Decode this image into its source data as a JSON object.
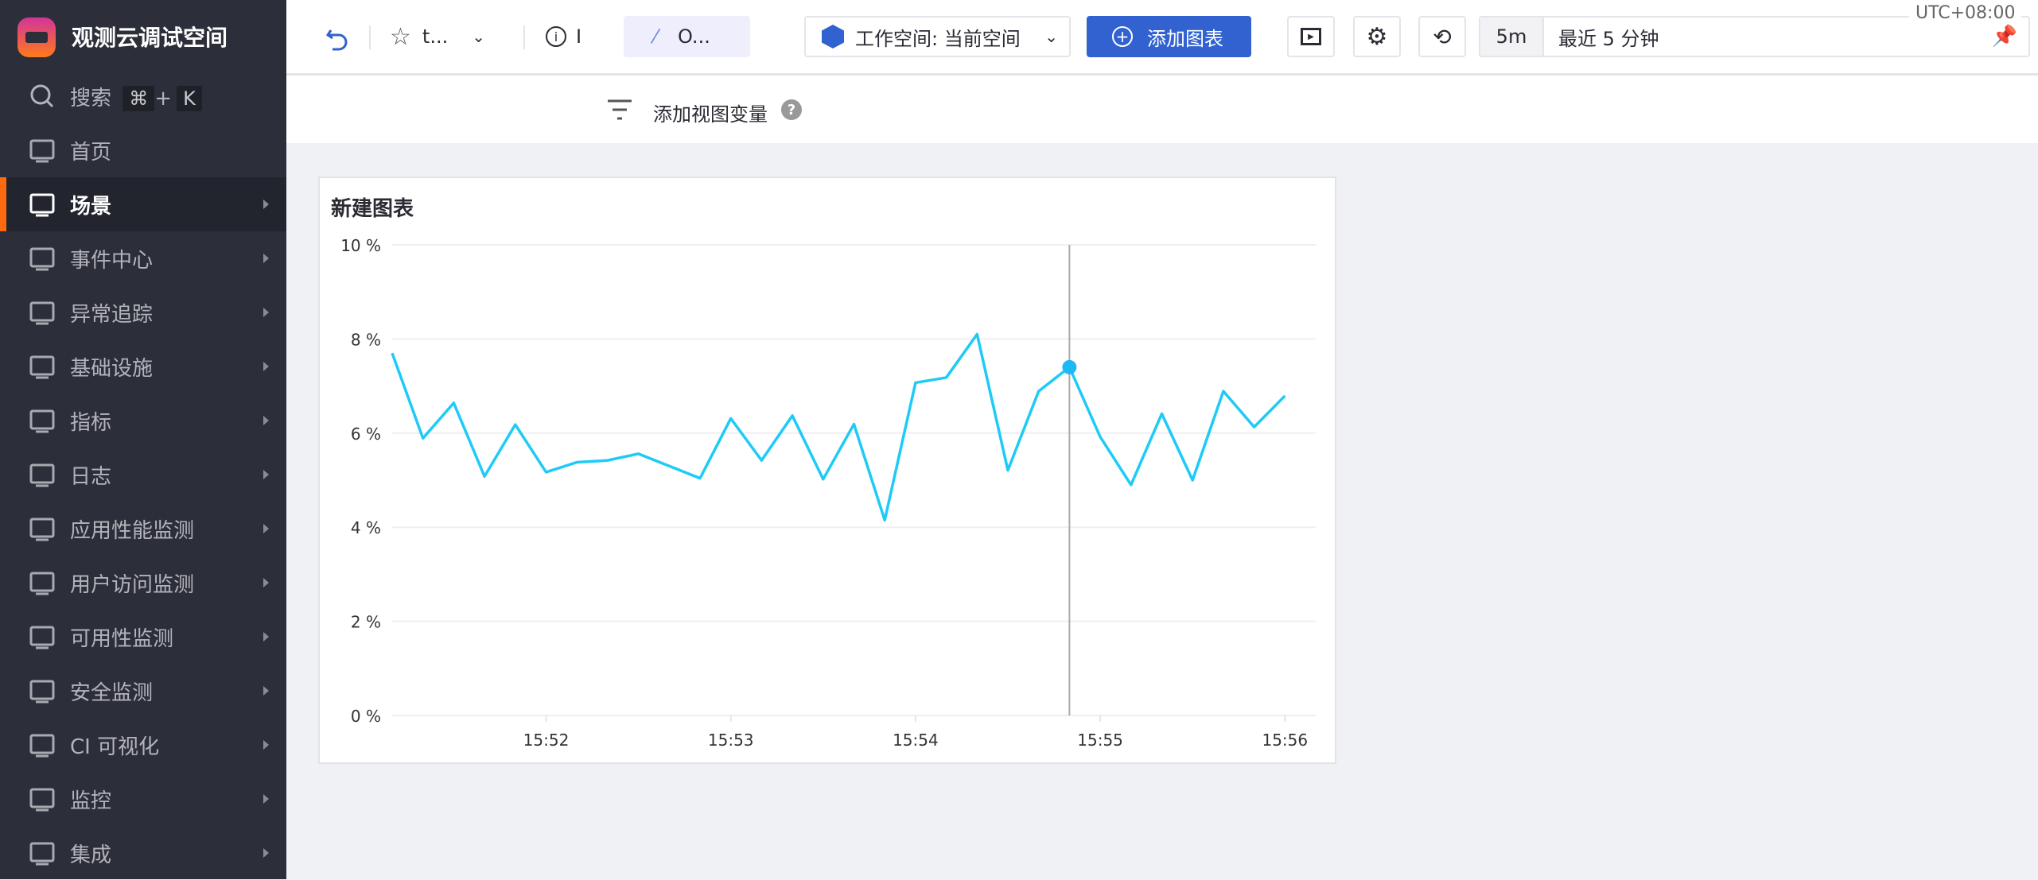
{
  "sidebar": {
    "brand": "观测云调试空间",
    "search": {
      "label": "搜索",
      "shortcut_key1": "⌘",
      "shortcut_plus": "+",
      "shortcut_key2": "K"
    },
    "items": [
      {
        "label": "首页",
        "icon": "home-icon"
      },
      {
        "label": "场景",
        "icon": "monitor-icon",
        "active": true
      },
      {
        "label": "事件中心",
        "icon": "calendar-icon"
      },
      {
        "label": "异常追踪",
        "icon": "scan-alert-icon"
      },
      {
        "label": "基础设施",
        "icon": "hexagons-icon"
      },
      {
        "label": "指标",
        "icon": "metrics-icon"
      },
      {
        "label": "日志",
        "icon": "log-search-icon"
      },
      {
        "label": "应用性能监测",
        "icon": "filter-lines-icon"
      },
      {
        "label": "用户访问监测",
        "icon": "grid-circles-icon"
      },
      {
        "label": "可用性监测",
        "icon": "probe-icon"
      },
      {
        "label": "安全监测",
        "icon": "shield-plus-icon"
      },
      {
        "label": "CI 可视化",
        "icon": "pipeline-icon"
      },
      {
        "label": "监控",
        "icon": "camera-icon"
      },
      {
        "label": "集成",
        "icon": "cube-icon"
      }
    ]
  },
  "topbar": {
    "dashboard_name": "t...",
    "info_label": "I",
    "ai_label": "O...",
    "workspace": "工作空间: 当前空间",
    "add_chart": "添加图表",
    "time_short": "5m",
    "time_range": "最近 5 分钟",
    "timezone": "UTC+08:00",
    "accent": "#3162d0"
  },
  "filter": {
    "label": "添加视图变量"
  },
  "panel": {
    "title": "新建图表"
  },
  "chart_data": {
    "type": "line",
    "title": "新建图表",
    "ylim": [
      0,
      10
    ],
    "yticks": [
      "0 %",
      "2 %",
      "4 %",
      "6 %",
      "8 %",
      "10 %"
    ],
    "ytick_values": [
      0,
      2,
      4,
      6,
      8,
      10
    ],
    "xticks": [
      "15:52",
      "15:53",
      "15:54",
      "15:55",
      "15:56"
    ],
    "xlim": [
      "15:51:10",
      "15:56:10"
    ],
    "grid": true,
    "color": "#1ecbf7",
    "x": [
      "15:51:10",
      "15:51:20",
      "15:51:30",
      "15:51:40",
      "15:51:50",
      "15:52:00",
      "15:52:10",
      "15:52:20",
      "15:52:30",
      "15:52:40",
      "15:52:50",
      "15:53:00",
      "15:53:10",
      "15:53:20",
      "15:53:30",
      "15:53:40",
      "15:53:50",
      "15:54:00",
      "15:54:10",
      "15:54:20",
      "15:54:30",
      "15:54:40",
      "15:54:50",
      "15:55:00",
      "15:55:10",
      "15:55:20",
      "15:55:30",
      "15:55:40",
      "15:55:50",
      "15:56:00"
    ],
    "values": [
      7.7,
      5.89,
      6.64,
      5.08,
      6.18,
      5.17,
      5.38,
      5.42,
      5.56,
      5.3,
      5.04,
      6.31,
      5.42,
      6.37,
      5.02,
      6.19,
      4.15,
      7.07,
      7.18,
      8.1,
      5.21,
      6.89,
      7.4,
      5.92,
      4.9,
      6.41,
      5.0,
      6.89,
      6.13,
      6.79
    ],
    "highlight_x": "15:54:50"
  }
}
